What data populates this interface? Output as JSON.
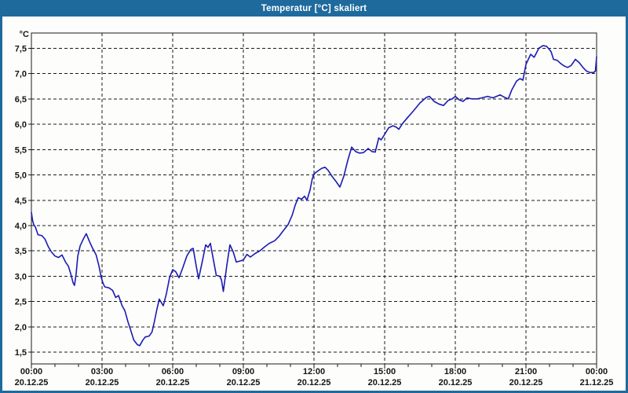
{
  "window": {
    "title": "Temperatur [°C] skaliert"
  },
  "colors": {
    "titlebar": "#1e6a9d",
    "window_border": "#1e6a9d",
    "plot_background": "#fdfdfb",
    "grid": "#1a1a1a",
    "line": "#1b1bb4",
    "label_text": "#151515"
  },
  "chart_data": {
    "type": "line",
    "title": "Temperatur [°C] skaliert",
    "ylabel": "°C",
    "grid": true,
    "legend": "none",
    "ylim": [
      1.27,
      7.8
    ],
    "xlim_hours": [
      0,
      24
    ],
    "minor_xtick_hours": 1,
    "yticks": [
      {
        "value": 1.5,
        "label": "1,5"
      },
      {
        "value": 2.0,
        "label": "2,0"
      },
      {
        "value": 2.5,
        "label": "2,5"
      },
      {
        "value": 3.0,
        "label": "3,0"
      },
      {
        "value": 3.5,
        "label": "3,5"
      },
      {
        "value": 4.0,
        "label": "4,0"
      },
      {
        "value": 4.5,
        "label": "4,5"
      },
      {
        "value": 5.0,
        "label": "5,0"
      },
      {
        "value": 5.5,
        "label": "5,5"
      },
      {
        "value": 6.0,
        "label": "6,0"
      },
      {
        "value": 6.5,
        "label": "6,5"
      },
      {
        "value": 7.0,
        "label": "7,0"
      },
      {
        "value": 7.5,
        "label": "7,5"
      }
    ],
    "xticks": [
      {
        "hour": 0,
        "time_label": "00:00",
        "date_label": "20.12.25"
      },
      {
        "hour": 3,
        "time_label": "03:00",
        "date_label": "20.12.25"
      },
      {
        "hour": 6,
        "time_label": "06:00",
        "date_label": "20.12.25"
      },
      {
        "hour": 9,
        "time_label": "09:00",
        "date_label": "20.12.25"
      },
      {
        "hour": 12,
        "time_label": "12:00",
        "date_label": "20.12.25"
      },
      {
        "hour": 15,
        "time_label": "15:00",
        "date_label": "20.12.25"
      },
      {
        "hour": 18,
        "time_label": "18:00",
        "date_label": "20.12.25"
      },
      {
        "hour": 21,
        "time_label": "21:00",
        "date_label": "20.12.25"
      },
      {
        "hour": 24,
        "time_label": "00:00",
        "date_label": "21.12.25"
      }
    ],
    "series": [
      {
        "name": "Temperatur [°C]",
        "points": [
          [
            0,
            4.26
          ],
          [
            0.05,
            4.1
          ],
          [
            0.1,
            4.02
          ],
          [
            0.17,
            3.97
          ],
          [
            0.22,
            3.9
          ],
          [
            0.28,
            3.82
          ],
          [
            0.45,
            3.8
          ],
          [
            0.58,
            3.73
          ],
          [
            0.72,
            3.58
          ],
          [
            0.85,
            3.48
          ],
          [
            1,
            3.4
          ],
          [
            1.15,
            3.37
          ],
          [
            1.3,
            3.42
          ],
          [
            1.45,
            3.28
          ],
          [
            1.57,
            3.2
          ],
          [
            1.67,
            3.05
          ],
          [
            1.77,
            2.87
          ],
          [
            1.83,
            2.82
          ],
          [
            1.9,
            3.05
          ],
          [
            1.97,
            3.4
          ],
          [
            2.07,
            3.6
          ],
          [
            2.2,
            3.73
          ],
          [
            2.33,
            3.84
          ],
          [
            2.47,
            3.68
          ],
          [
            2.6,
            3.55
          ],
          [
            2.75,
            3.42
          ],
          [
            2.87,
            3.2
          ],
          [
            2.97,
            2.97
          ],
          [
            3.05,
            2.85
          ],
          [
            3.12,
            2.79
          ],
          [
            3.3,
            2.77
          ],
          [
            3.45,
            2.72
          ],
          [
            3.58,
            2.58
          ],
          [
            3.7,
            2.62
          ],
          [
            3.85,
            2.42
          ],
          [
            3.97,
            2.32
          ],
          [
            4.1,
            2.1
          ],
          [
            4.2,
            1.96
          ],
          [
            4.35,
            1.74
          ],
          [
            4.5,
            1.65
          ],
          [
            4.6,
            1.63
          ],
          [
            4.72,
            1.73
          ],
          [
            4.83,
            1.8
          ],
          [
            5,
            1.82
          ],
          [
            5.12,
            1.9
          ],
          [
            5.22,
            2.1
          ],
          [
            5.33,
            2.35
          ],
          [
            5.43,
            2.55
          ],
          [
            5.53,
            2.47
          ],
          [
            5.6,
            2.42
          ],
          [
            5.73,
            2.65
          ],
          [
            5.87,
            2.98
          ],
          [
            6,
            3.13
          ],
          [
            6.13,
            3.09
          ],
          [
            6.27,
            2.97
          ],
          [
            6.43,
            3.17
          ],
          [
            6.6,
            3.4
          ],
          [
            6.77,
            3.53
          ],
          [
            6.87,
            3.55
          ],
          [
            7,
            3.2
          ],
          [
            7.1,
            2.95
          ],
          [
            7.27,
            3.32
          ],
          [
            7.4,
            3.62
          ],
          [
            7.5,
            3.57
          ],
          [
            7.6,
            3.65
          ],
          [
            7.73,
            3.32
          ],
          [
            7.85,
            3.02
          ],
          [
            8,
            3
          ],
          [
            8.07,
            2.93
          ],
          [
            8.15,
            2.7
          ],
          [
            8.3,
            3.22
          ],
          [
            8.43,
            3.62
          ],
          [
            8.57,
            3.48
          ],
          [
            8.7,
            3.28
          ],
          [
            8.85,
            3.3
          ],
          [
            9,
            3.32
          ],
          [
            9.15,
            3.43
          ],
          [
            9.3,
            3.38
          ],
          [
            9.5,
            3.45
          ],
          [
            9.7,
            3.5
          ],
          [
            9.9,
            3.58
          ],
          [
            10.1,
            3.65
          ],
          [
            10.33,
            3.7
          ],
          [
            10.5,
            3.78
          ],
          [
            10.7,
            3.9
          ],
          [
            10.9,
            4.02
          ],
          [
            11.07,
            4.2
          ],
          [
            11.2,
            4.4
          ],
          [
            11.33,
            4.55
          ],
          [
            11.47,
            4.52
          ],
          [
            11.6,
            4.58
          ],
          [
            11.7,
            4.5
          ],
          [
            11.83,
            4.7
          ],
          [
            11.93,
            4.93
          ],
          [
            12,
            5.02
          ],
          [
            12.17,
            5.08
          ],
          [
            12.33,
            5.13
          ],
          [
            12.47,
            5.15
          ],
          [
            12.6,
            5.09
          ],
          [
            12.77,
            4.97
          ],
          [
            12.95,
            4.86
          ],
          [
            13.1,
            4.76
          ],
          [
            13.27,
            4.98
          ],
          [
            13.43,
            5.28
          ],
          [
            13.6,
            5.55
          ],
          [
            13.77,
            5.46
          ],
          [
            13.93,
            5.43
          ],
          [
            14.1,
            5.44
          ],
          [
            14.3,
            5.52
          ],
          [
            14.47,
            5.46
          ],
          [
            14.6,
            5.45
          ],
          [
            14.75,
            5.73
          ],
          [
            14.85,
            5.69
          ],
          [
            15,
            5.8
          ],
          [
            15.17,
            5.93
          ],
          [
            15.35,
            5.97
          ],
          [
            15.5,
            5.94
          ],
          [
            15.6,
            5.9
          ],
          [
            15.77,
            6.02
          ],
          [
            15.97,
            6.13
          ],
          [
            16.2,
            6.25
          ],
          [
            16.5,
            6.42
          ],
          [
            16.77,
            6.53
          ],
          [
            16.9,
            6.55
          ],
          [
            17.1,
            6.45
          ],
          [
            17.3,
            6.4
          ],
          [
            17.5,
            6.37
          ],
          [
            17.7,
            6.47
          ],
          [
            17.87,
            6.5
          ],
          [
            18,
            6.55
          ],
          [
            18.17,
            6.48
          ],
          [
            18.33,
            6.45
          ],
          [
            18.5,
            6.52
          ],
          [
            18.7,
            6.5
          ],
          [
            18.93,
            6.5
          ],
          [
            19.13,
            6.52
          ],
          [
            19.37,
            6.55
          ],
          [
            19.6,
            6.52
          ],
          [
            19.9,
            6.58
          ],
          [
            20.1,
            6.53
          ],
          [
            20.25,
            6.5
          ],
          [
            20.4,
            6.68
          ],
          [
            20.6,
            6.85
          ],
          [
            20.75,
            6.9
          ],
          [
            20.87,
            6.87
          ],
          [
            21,
            7.18
          ],
          [
            21.2,
            7.38
          ],
          [
            21.35,
            7.32
          ],
          [
            21.55,
            7.5
          ],
          [
            21.72,
            7.55
          ],
          [
            21.87,
            7.54
          ],
          [
            21.97,
            7.49
          ],
          [
            22.07,
            7.43
          ],
          [
            22.17,
            7.28
          ],
          [
            22.33,
            7.26
          ],
          [
            22.47,
            7.2
          ],
          [
            22.62,
            7.15
          ],
          [
            22.77,
            7.12
          ],
          [
            22.92,
            7.16
          ],
          [
            23.1,
            7.28
          ],
          [
            23.27,
            7.21
          ],
          [
            23.42,
            7.12
          ],
          [
            23.57,
            7.05
          ],
          [
            23.72,
            7.02
          ],
          [
            23.87,
            7.02
          ],
          [
            23.95,
            7.05
          ],
          [
            24,
            7.33
          ]
        ]
      }
    ]
  }
}
